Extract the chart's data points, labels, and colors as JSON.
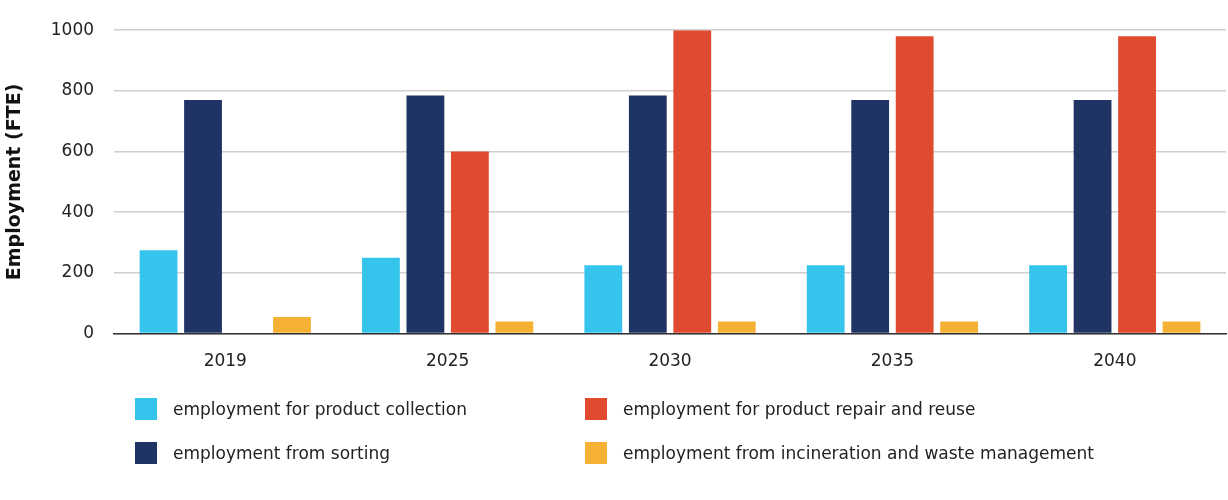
{
  "chart_data": {
    "type": "bar",
    "ylabel": "Employment (FTE)",
    "categories": [
      "2019",
      "2025",
      "2030",
      "2035",
      "2040"
    ],
    "series": [
      {
        "name": "employment for product collection",
        "color": "#35c4ec",
        "values": [
          275,
          250,
          225,
          225,
          225
        ]
      },
      {
        "name": "employment from sorting",
        "color": "#1f3364",
        "values": [
          770,
          785,
          785,
          770,
          770
        ]
      },
      {
        "name": "employment for product repair and reuse",
        "color": "#e04a2f",
        "values": [
          null,
          600,
          1000,
          980,
          980
        ]
      },
      {
        "name": "employment from incineration and waste management",
        "color": "#f5b133",
        "values": [
          55,
          40,
          40,
          40,
          40
        ]
      }
    ],
    "ylim": [
      0,
      1000
    ],
    "yticks": [
      0,
      200,
      400,
      600,
      800,
      1000
    ],
    "grid": "y",
    "legend": "bottom"
  }
}
